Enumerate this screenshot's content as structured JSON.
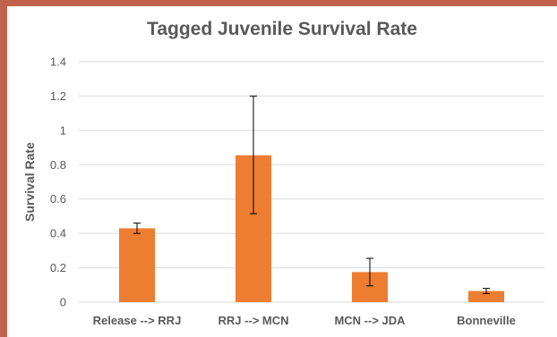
{
  "chart_data": {
    "type": "bar",
    "title": "Tagged Juvenile Survival Rate",
    "xlabel": "",
    "ylabel": "Survival Rate",
    "ylim": [
      0,
      1.4
    ],
    "yticks": [
      "0",
      "0.2",
      "0.4",
      "0.6",
      "0.8",
      "1",
      "1.2",
      "1.4"
    ],
    "categories": [
      "Release --> RRJ",
      "RRJ --> MCN",
      "MCN --> JDA",
      "Bonneville"
    ],
    "values": [
      0.43,
      0.855,
      0.175,
      0.065
    ],
    "error_low": [
      0.4,
      0.515,
      0.095,
      0.05
    ],
    "error_high": [
      0.46,
      1.2,
      0.255,
      0.08
    ],
    "bar_color": "#ed7d31",
    "grid": true,
    "legend": "none"
  }
}
